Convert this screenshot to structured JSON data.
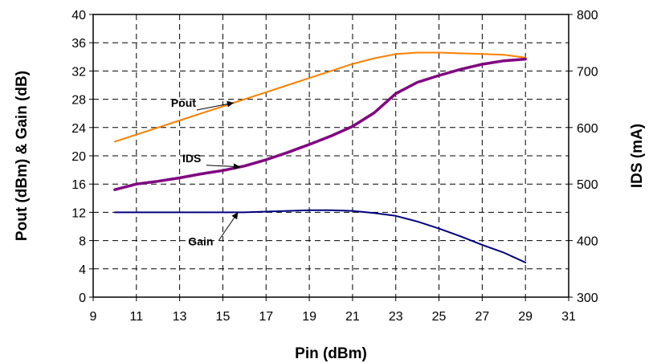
{
  "chart_data": {
    "type": "line",
    "title": "",
    "xlabel": "Pin (dBm)",
    "ylabel": "Pout (dBm) & Gain (dB)",
    "y2label": "IDS (mA)",
    "xlim": [
      9,
      31
    ],
    "ylim": [
      0,
      40
    ],
    "y2lim": [
      300,
      800
    ],
    "xticks": [
      9,
      11,
      13,
      15,
      17,
      19,
      21,
      23,
      25,
      27,
      29,
      31
    ],
    "yticks": [
      0,
      4,
      8,
      12,
      16,
      20,
      24,
      28,
      32,
      36,
      40
    ],
    "y2ticks": [
      300,
      400,
      500,
      600,
      700,
      800
    ],
    "grid": true,
    "legend": "none",
    "series": [
      {
        "name": "Pout",
        "axis": "left",
        "color": "#FF7F00",
        "x": [
          10,
          11,
          12,
          13,
          14,
          15,
          16,
          17,
          18,
          19,
          20,
          21,
          22,
          23,
          24,
          25,
          26,
          27,
          28,
          29
        ],
        "y": [
          22.0,
          23.0,
          24.0,
          25.0,
          26.0,
          27.0,
          28.0,
          29.0,
          30.0,
          31.0,
          32.0,
          33.0,
          33.8,
          34.4,
          34.6,
          34.6,
          34.5,
          34.4,
          34.3,
          33.9
        ]
      },
      {
        "name": "IDS",
        "axis": "right",
        "color": "#800080",
        "x": [
          10,
          11,
          12,
          13,
          14,
          15,
          16,
          17,
          18,
          19,
          20,
          21,
          22,
          23,
          24,
          25,
          26,
          27,
          28,
          29
        ],
        "y": [
          490,
          500,
          505,
          511,
          518,
          524,
          532,
          543,
          556,
          570,
          585,
          602,
          626,
          660,
          680,
          692,
          703,
          712,
          718,
          721
        ]
      },
      {
        "name": "Gain",
        "axis": "left",
        "color": "#000080",
        "x": [
          10,
          11,
          12,
          13,
          14,
          15,
          16,
          17,
          18,
          19,
          20,
          21,
          22,
          23,
          24,
          25,
          26,
          27,
          28,
          29
        ],
        "y": [
          12.0,
          12.0,
          12.0,
          12.0,
          12.0,
          12.0,
          12.0,
          12.1,
          12.2,
          12.3,
          12.3,
          12.2,
          11.9,
          11.5,
          10.7,
          9.7,
          8.6,
          7.4,
          6.3,
          4.9
        ]
      }
    ],
    "annotations": [
      {
        "text": "Pout",
        "series": "Pout",
        "x": 15.5
      },
      {
        "text": "IDS",
        "series": "IDS",
        "x": 15.8
      },
      {
        "text": "Gain",
        "series": "Gain",
        "x": 15.7
      }
    ]
  }
}
